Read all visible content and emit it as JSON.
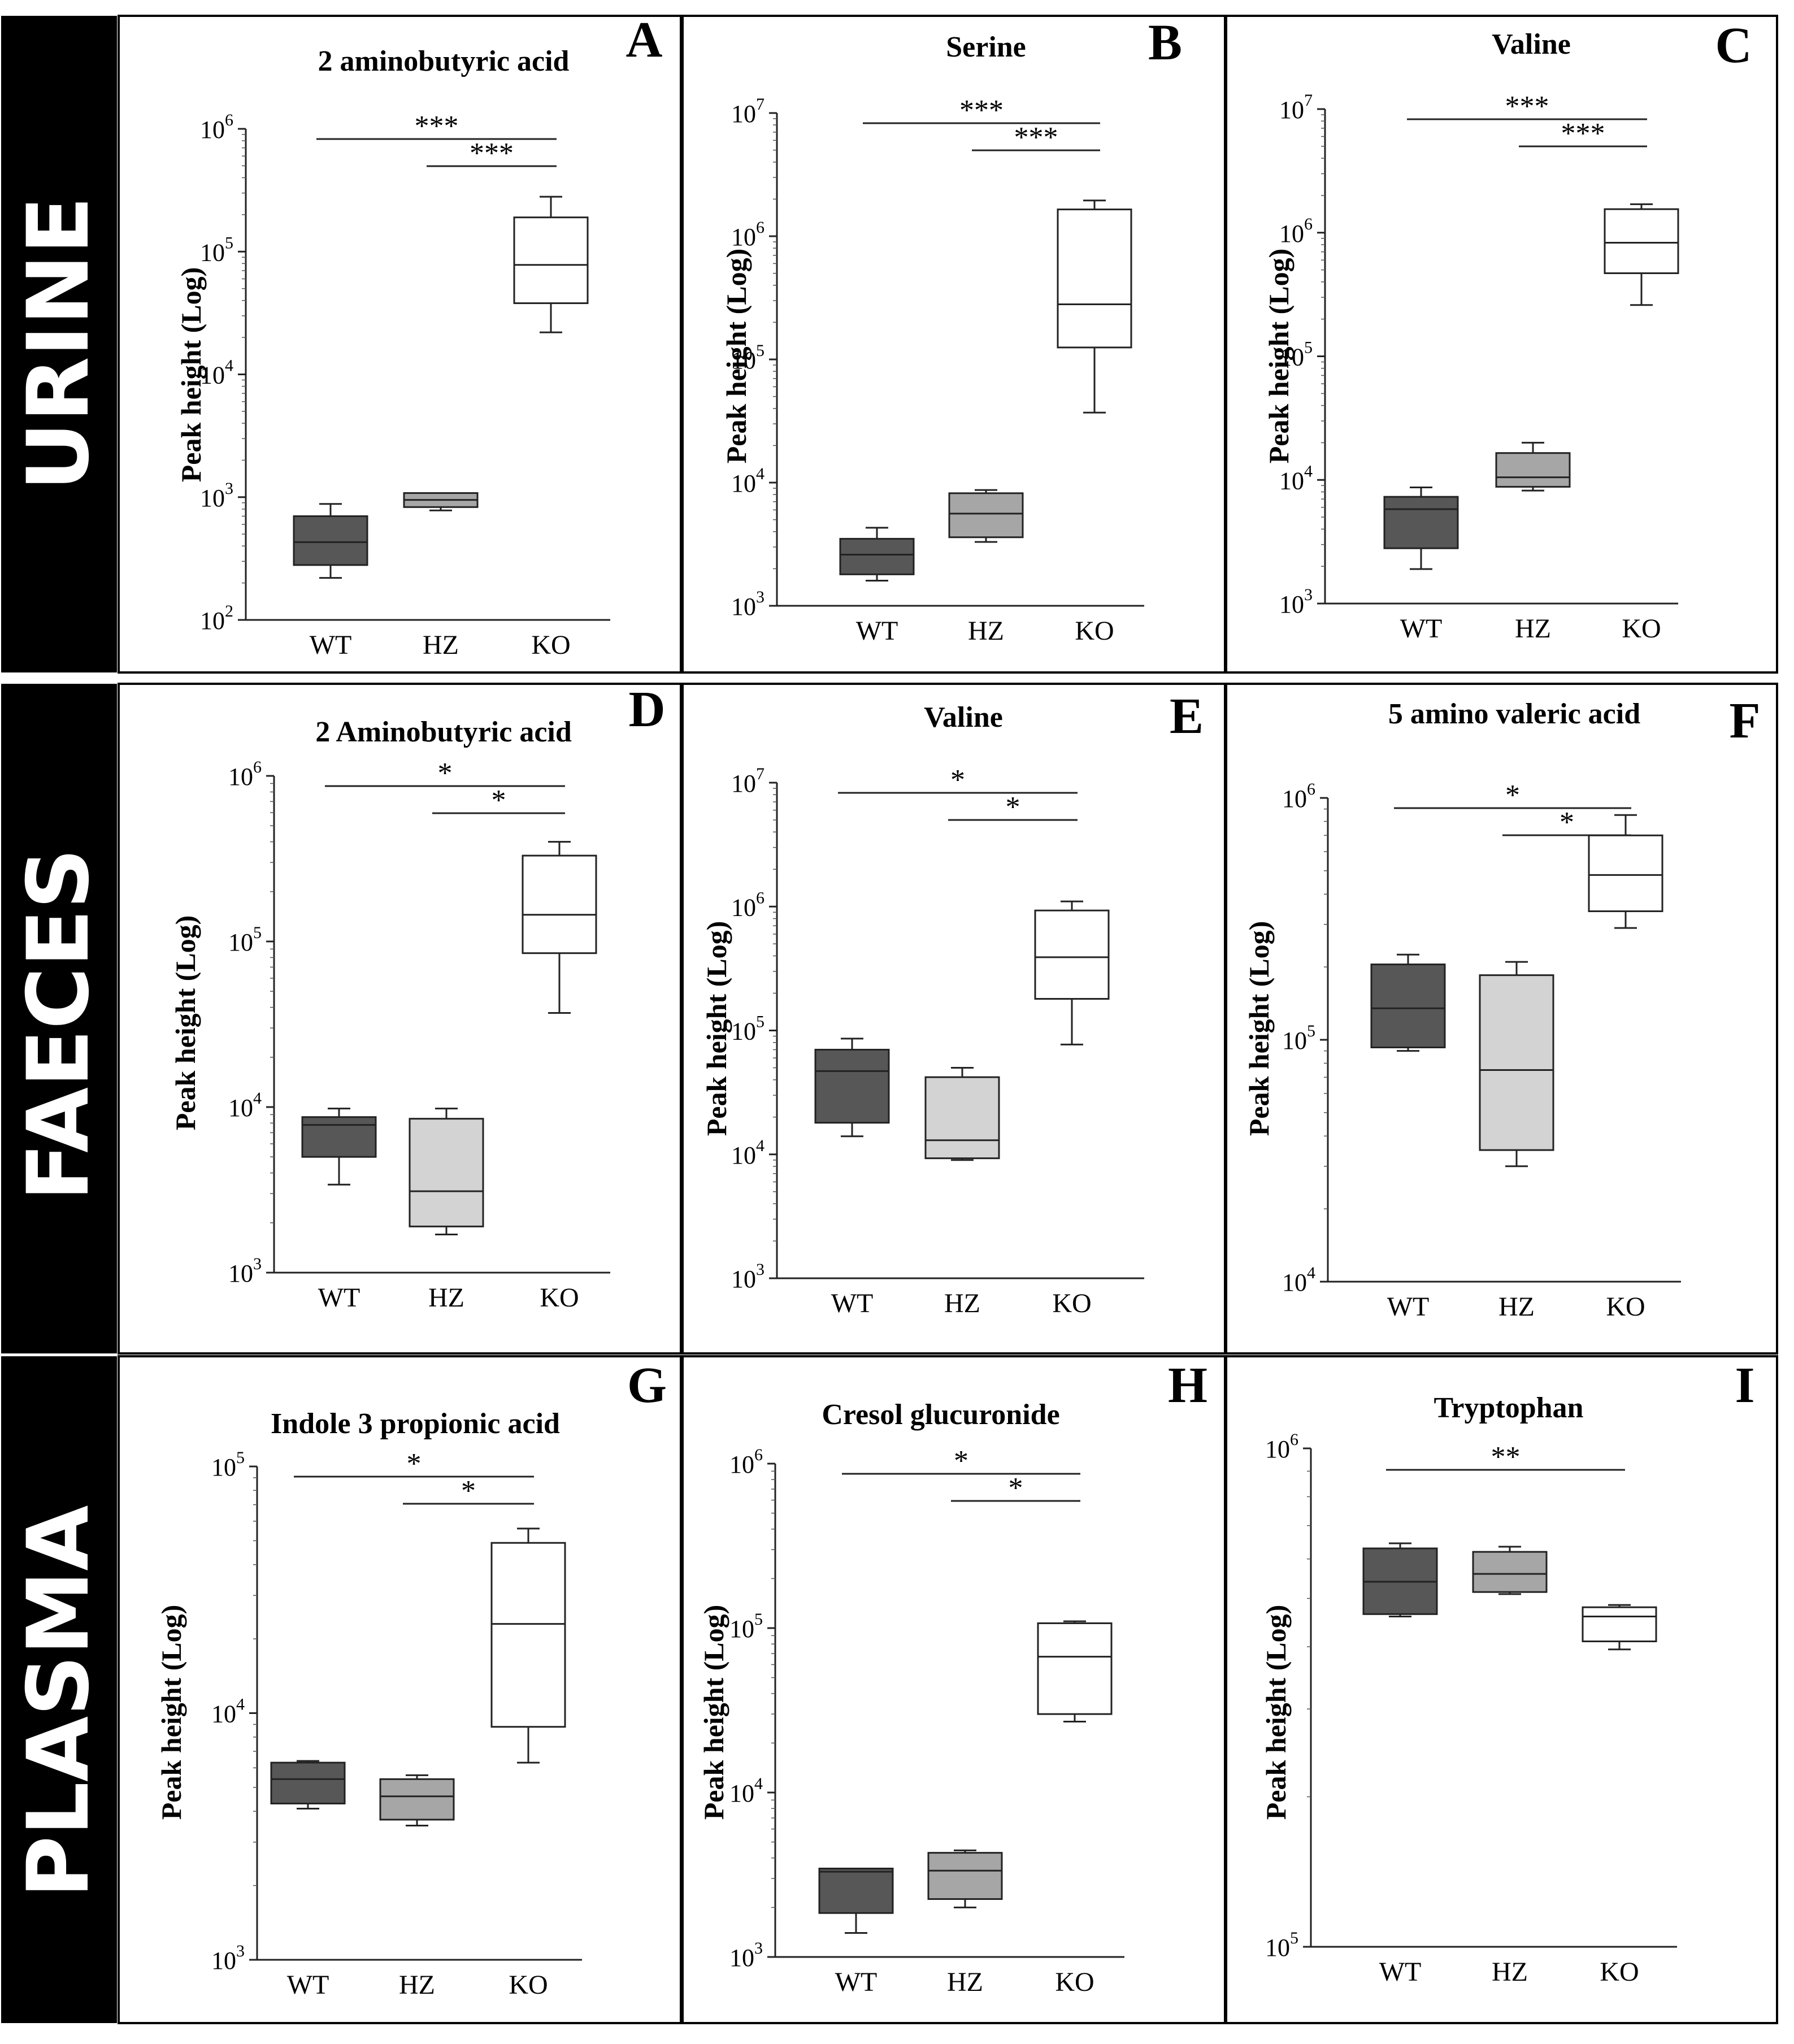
{
  "row_labels": [
    "URINE",
    "FAECES",
    "PLASMA"
  ],
  "colors": {
    "WT": "#575757",
    "HZ": "#a6a6a6",
    "KO": "#ffffff",
    "HZ_faeces": "#d3d3d3",
    "band": "#000000"
  },
  "chart_data": [
    {
      "panel": "A",
      "type": "box",
      "title": "2 aminobutyric acid",
      "ylabel": "Peak height (Log)",
      "yscale": "log",
      "ylim_exp": [
        2,
        6
      ],
      "yticks": [
        "10^2",
        "10^3",
        "10^4",
        "10^5",
        "10^6"
      ],
      "categories": [
        "WT",
        "HZ",
        "KO"
      ],
      "boxes": [
        {
          "group": "WT",
          "min": 220,
          "q1": 280,
          "median": 430,
          "q3": 700,
          "max": 880
        },
        {
          "group": "HZ",
          "min": 780,
          "q1": 830,
          "median": 950,
          "q3": 1080,
          "max": 1080
        },
        {
          "group": "KO",
          "min": 22000,
          "q1": 38000,
          "median": 78000,
          "q3": 190000,
          "max": 280000
        }
      ],
      "significance": [
        {
          "from": "WT",
          "to": "KO",
          "label": "***"
        },
        {
          "from": "HZ",
          "to": "KO",
          "label": "***"
        }
      ]
    },
    {
      "panel": "B",
      "type": "box",
      "title": "Serine",
      "ylabel": "Peak height (Log)",
      "yscale": "log",
      "ylim_exp": [
        3,
        7
      ],
      "yticks": [
        "10^3",
        "10^4",
        "10^5",
        "10^6",
        "10^7"
      ],
      "categories": [
        "WT",
        "HZ",
        "KO"
      ],
      "boxes": [
        {
          "group": "WT",
          "min": 1600,
          "q1": 1800,
          "median": 2600,
          "q3": 3500,
          "max": 4300
        },
        {
          "group": "HZ",
          "min": 3300,
          "q1": 3600,
          "median": 5600,
          "q3": 8200,
          "max": 8700
        },
        {
          "group": "KO",
          "min": 37000,
          "q1": 125000,
          "median": 280000,
          "q3": 1650000,
          "max": 1950000
        }
      ],
      "significance": [
        {
          "from": "WT",
          "to": "KO",
          "label": "***"
        },
        {
          "from": "HZ",
          "to": "KO",
          "label": "***"
        }
      ]
    },
    {
      "panel": "C",
      "type": "box",
      "title": "Valine",
      "ylabel": "Peak height (Log)",
      "yscale": "log",
      "ylim_exp": [
        3,
        7
      ],
      "yticks": [
        "10^3",
        "10^4",
        "10^5",
        "10^6",
        "10^7"
      ],
      "categories": [
        "WT",
        "HZ",
        "KO"
      ],
      "boxes": [
        {
          "group": "WT",
          "min": 1900,
          "q1": 2800,
          "median": 5800,
          "q3": 7300,
          "max": 8700
        },
        {
          "group": "HZ",
          "min": 8200,
          "q1": 8800,
          "median": 10500,
          "q3": 16500,
          "max": 20000
        },
        {
          "group": "KO",
          "min": 260000,
          "q1": 470000,
          "median": 830000,
          "q3": 1550000,
          "max": 1700000
        }
      ],
      "significance": [
        {
          "from": "WT",
          "to": "KO",
          "label": "***"
        },
        {
          "from": "HZ",
          "to": "KO",
          "label": "***"
        }
      ]
    },
    {
      "panel": "D",
      "type": "box",
      "title": "2 Aminobutyric acid",
      "ylabel": "Peak height (Log)",
      "yscale": "log",
      "ylim_exp": [
        3,
        6
      ],
      "yticks": [
        "10^3",
        "10^4",
        "10^5",
        "10^6"
      ],
      "categories": [
        "WT",
        "HZ",
        "KO"
      ],
      "boxes": [
        {
          "group": "WT",
          "min": 3400,
          "q1": 5000,
          "median": 7800,
          "q3": 8700,
          "max": 9800
        },
        {
          "group": "HZ",
          "min": 1700,
          "q1": 1900,
          "median": 3100,
          "q3": 8500,
          "max": 9800
        },
        {
          "group": "KO",
          "min": 37000,
          "q1": 85000,
          "median": 145000,
          "q3": 330000,
          "max": 400000
        }
      ],
      "significance": [
        {
          "from": "WT",
          "to": "KO",
          "label": "*"
        },
        {
          "from": "HZ",
          "to": "KO",
          "label": "*"
        }
      ]
    },
    {
      "panel": "E",
      "type": "box",
      "title": "Valine",
      "ylabel": "Peak height (Log)",
      "yscale": "log",
      "ylim_exp": [
        3,
        7
      ],
      "yticks": [
        "10^3",
        "10^4",
        "10^5",
        "10^6",
        "10^7"
      ],
      "categories": [
        "WT",
        "HZ",
        "KO"
      ],
      "boxes": [
        {
          "group": "WT",
          "min": 14000,
          "q1": 18000,
          "median": 47000,
          "q3": 70000,
          "max": 86000
        },
        {
          "group": "HZ",
          "min": 9000,
          "q1": 9300,
          "median": 13000,
          "q3": 42000,
          "max": 50000
        },
        {
          "group": "KO",
          "min": 77000,
          "q1": 180000,
          "median": 390000,
          "q3": 930000,
          "max": 1100000
        }
      ],
      "significance": [
        {
          "from": "WT",
          "to": "KO",
          "label": "*"
        },
        {
          "from": "HZ",
          "to": "KO",
          "label": "*"
        }
      ]
    },
    {
      "panel": "F",
      "type": "box",
      "title": "5 amino valeric acid",
      "ylabel": "Peak height (Log)",
      "yscale": "log",
      "ylim_exp": [
        4,
        6
      ],
      "yticks": [
        "10^4",
        "10^5",
        "10^6"
      ],
      "categories": [
        "WT",
        "HZ",
        "KO"
      ],
      "boxes": [
        {
          "group": "WT",
          "min": 90000,
          "q1": 93000,
          "median": 135000,
          "q3": 205000,
          "max": 225000
        },
        {
          "group": "HZ",
          "min": 30000,
          "q1": 35000,
          "median": 75000,
          "q3": 185000,
          "max": 210000
        },
        {
          "group": "KO",
          "min": 290000,
          "q1": 340000,
          "median": 480000,
          "q3": 700000,
          "max": 850000
        }
      ],
      "significance": [
        {
          "from": "WT",
          "to": "KO",
          "label": "*"
        },
        {
          "from": "HZ",
          "to": "KO",
          "label": "*"
        }
      ]
    },
    {
      "panel": "G",
      "type": "box",
      "title": "Indole 3 propionic acid",
      "ylabel": "Peak height (Log)",
      "yscale": "log",
      "ylim_exp": [
        3,
        5
      ],
      "yticks": [
        "10^3",
        "10^4",
        "10^5"
      ],
      "categories": [
        "WT",
        "HZ",
        "KO"
      ],
      "boxes": [
        {
          "group": "WT",
          "min": 4100,
          "q1": 4300,
          "median": 5400,
          "q3": 6300,
          "max": 6400
        },
        {
          "group": "HZ",
          "min": 3500,
          "q1": 3700,
          "median": 4600,
          "q3": 5400,
          "max": 5600
        },
        {
          "group": "KO",
          "min": 6300,
          "q1": 8800,
          "median": 23000,
          "q3": 49000,
          "max": 56000
        }
      ],
      "significance": [
        {
          "from": "WT",
          "to": "KO",
          "label": "*"
        },
        {
          "from": "HZ",
          "to": "KO",
          "label": "*"
        }
      ]
    },
    {
      "panel": "H",
      "type": "box",
      "title": "Cresol glucuronide",
      "ylabel": "Peak height (Log)",
      "yscale": "log",
      "ylim_exp": [
        3,
        6
      ],
      "yticks": [
        "10^3",
        "10^4",
        "10^5",
        "10^6"
      ],
      "categories": [
        "WT",
        "HZ",
        "KO"
      ],
      "boxes": [
        {
          "group": "WT",
          "min": 1400,
          "q1": 1850,
          "median": 3300,
          "q3": 3450,
          "max": 3450
        },
        {
          "group": "HZ",
          "min": 2000,
          "q1": 2250,
          "median": 3350,
          "q3": 4300,
          "max": 4450
        },
        {
          "group": "KO",
          "min": 27000,
          "q1": 30000,
          "median": 67000,
          "q3": 107000,
          "max": 110000
        }
      ],
      "significance": [
        {
          "from": "WT",
          "to": "KO",
          "label": "*"
        },
        {
          "from": "HZ",
          "to": "KO",
          "label": "*"
        }
      ]
    },
    {
      "panel": "I",
      "type": "box",
      "title": "Tryptophan",
      "ylabel": "Peak height (Log)",
      "yscale": "log",
      "ylim_exp": [
        5,
        6
      ],
      "yticks": [
        "10^5",
        "10^6"
      ],
      "categories": [
        "WT",
        "HZ",
        "KO"
      ],
      "boxes": [
        {
          "group": "WT",
          "min": 460000,
          "q1": 465000,
          "median": 540000,
          "q3": 630000,
          "max": 645000
        },
        {
          "group": "HZ",
          "min": 510000,
          "q1": 515000,
          "median": 560000,
          "q3": 620000,
          "max": 635000
        },
        {
          "group": "KO",
          "min": 395000,
          "q1": 410000,
          "median": 460000,
          "q3": 480000,
          "max": 485000
        }
      ],
      "significance": [
        {
          "from": "WT",
          "to": "KO",
          "label": "**"
        }
      ]
    }
  ]
}
